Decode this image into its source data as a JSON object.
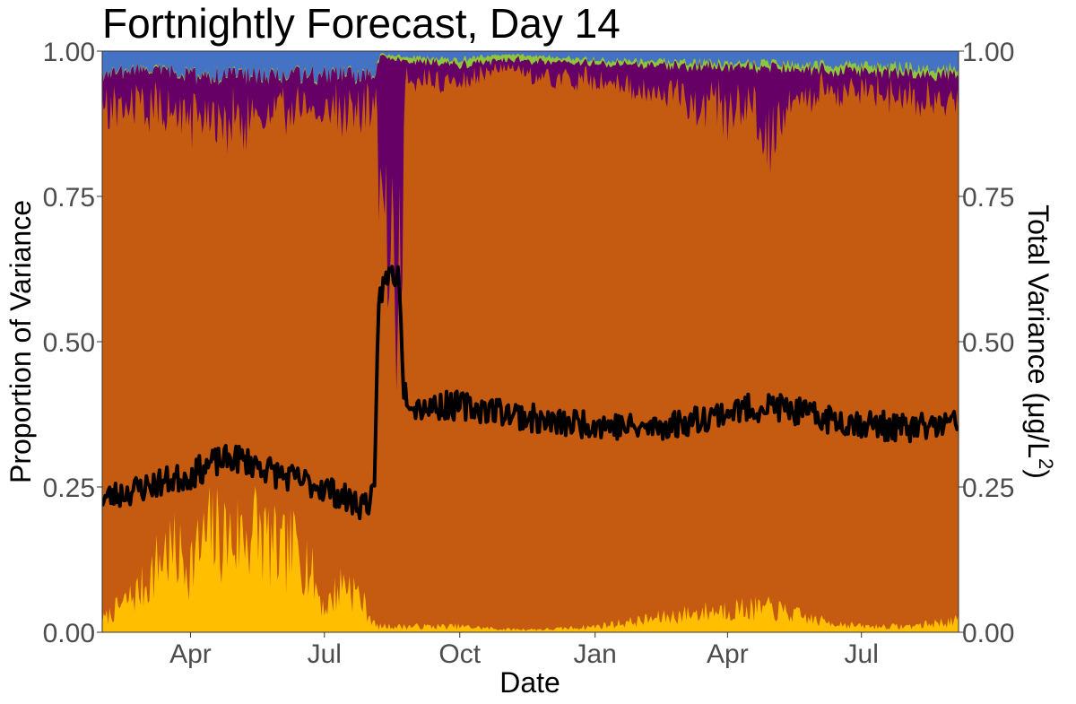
{
  "chart_data": {
    "type": "area",
    "title": "Fortnightly Forecast, Day 14",
    "xlabel": "Date",
    "ylabel": "Proportion of Variance",
    "y2label_prefix": "Total Variance (",
    "y2label_unit": "μg/L",
    "y2label_sup": "2",
    "y2label_suffix": ")",
    "ylim": [
      0,
      1
    ],
    "y2lim": [
      0,
      1
    ],
    "yticks": [
      "0.00",
      "0.25",
      "0.50",
      "0.75",
      "1.00"
    ],
    "y2ticks": [
      "0.00",
      "0.25",
      "0.50",
      "0.75",
      "1.00"
    ],
    "xticks": [
      "Apr",
      "Jul",
      "Oct",
      "Jan",
      "Apr",
      "Jul"
    ],
    "xtick_dates": [
      "2018-04-01",
      "2018-07-01",
      "2018-10-01",
      "2019-01-01",
      "2019-04-01",
      "2019-07-01"
    ],
    "xlim": [
      "2018-01-31",
      "2019-09-05"
    ],
    "grid": false,
    "colors": {
      "yellow": "#ffbe00",
      "orange": "#c55a11",
      "purple": "#660066",
      "green": "#8cc63f",
      "blue": "#4472c4",
      "total": "#000000"
    },
    "stack_order": [
      "yellow",
      "orange",
      "purple",
      "green",
      "blue"
    ],
    "series": [
      {
        "color": "yellow",
        "points": [
          [
            "2018-01-31",
            0.02
          ],
          [
            "2018-02-15",
            0.05
          ],
          [
            "2018-03-01",
            0.08
          ],
          [
            "2018-03-15",
            0.14
          ],
          [
            "2018-04-01",
            0.12
          ],
          [
            "2018-04-15",
            0.17
          ],
          [
            "2018-05-01",
            0.16
          ],
          [
            "2018-05-15",
            0.18
          ],
          [
            "2018-06-01",
            0.13
          ],
          [
            "2018-06-15",
            0.15
          ],
          [
            "2018-07-01",
            0.04
          ],
          [
            "2018-07-15",
            0.09
          ],
          [
            "2018-07-25",
            0.06
          ],
          [
            "2018-08-05",
            0.01
          ],
          [
            "2018-09-01",
            0.01
          ],
          [
            "2018-10-01",
            0.01
          ],
          [
            "2018-11-01",
            0.005
          ],
          [
            "2018-12-01",
            0.005
          ],
          [
            "2019-01-01",
            0.01
          ],
          [
            "2019-02-01",
            0.02
          ],
          [
            "2019-03-01",
            0.03
          ],
          [
            "2019-04-01",
            0.04
          ],
          [
            "2019-05-01",
            0.04
          ],
          [
            "2019-06-01",
            0.02
          ],
          [
            "2019-07-01",
            0.01
          ],
          [
            "2019-08-01",
            0.01
          ],
          [
            "2019-09-05",
            0.02
          ]
        ]
      },
      {
        "color": "purple",
        "points": [
          [
            "2018-01-31",
            0.07
          ],
          [
            "2018-03-01",
            0.06
          ],
          [
            "2018-04-01",
            0.08
          ],
          [
            "2018-05-01",
            0.08
          ],
          [
            "2018-06-01",
            0.06
          ],
          [
            "2018-07-01",
            0.06
          ],
          [
            "2018-08-05",
            0.06
          ],
          [
            "2018-08-08",
            0.35
          ],
          [
            "2018-08-22",
            0.35
          ],
          [
            "2018-08-26",
            0.03
          ],
          [
            "2018-10-01",
            0.03
          ],
          [
            "2018-11-01",
            0.01
          ],
          [
            "2018-12-01",
            0.03
          ],
          [
            "2019-01-01",
            0.03
          ],
          [
            "2019-02-01",
            0.04
          ],
          [
            "2019-03-01",
            0.05
          ],
          [
            "2019-04-01",
            0.08
          ],
          [
            "2019-05-01",
            0.11
          ],
          [
            "2019-05-15",
            0.05
          ],
          [
            "2019-06-01",
            0.04
          ],
          [
            "2019-07-01",
            0.03
          ],
          [
            "2019-08-01",
            0.04
          ],
          [
            "2019-09-05",
            0.04
          ]
        ]
      },
      {
        "color": "green",
        "points": [
          [
            "2018-01-31",
            0.002
          ],
          [
            "2018-08-05",
            0.002
          ],
          [
            "2018-08-08",
            0.005
          ],
          [
            "2018-10-15",
            0.01
          ],
          [
            "2018-11-01",
            0.01
          ],
          [
            "2019-01-01",
            0.006
          ],
          [
            "2019-04-01",
            0.008
          ],
          [
            "2019-07-01",
            0.01
          ],
          [
            "2019-09-05",
            0.01
          ]
        ]
      },
      {
        "color": "blue",
        "points": [
          [
            "2018-01-31",
            0.04
          ],
          [
            "2018-03-01",
            0.03
          ],
          [
            "2018-04-01",
            0.04
          ],
          [
            "2018-05-01",
            0.04
          ],
          [
            "2018-06-01",
            0.04
          ],
          [
            "2018-07-01",
            0.04
          ],
          [
            "2018-08-05",
            0.04
          ],
          [
            "2018-08-08",
            0.005
          ],
          [
            "2018-09-01",
            0.01
          ],
          [
            "2018-10-01",
            0.015
          ],
          [
            "2018-11-01",
            0.005
          ],
          [
            "2019-01-01",
            0.015
          ],
          [
            "2019-04-01",
            0.02
          ],
          [
            "2019-07-01",
            0.025
          ],
          [
            "2019-09-05",
            0.03
          ]
        ]
      },
      {
        "name": "Total Variance",
        "color": "total",
        "axis": "right",
        "points": [
          [
            "2018-01-31",
            0.23
          ],
          [
            "2018-02-15",
            0.24
          ],
          [
            "2018-03-01",
            0.25
          ],
          [
            "2018-03-15",
            0.26
          ],
          [
            "2018-04-01",
            0.27
          ],
          [
            "2018-04-15",
            0.29
          ],
          [
            "2018-05-01",
            0.3
          ],
          [
            "2018-05-15",
            0.29
          ],
          [
            "2018-06-01",
            0.27
          ],
          [
            "2018-06-15",
            0.26
          ],
          [
            "2018-07-01",
            0.25
          ],
          [
            "2018-07-15",
            0.23
          ],
          [
            "2018-07-25",
            0.22
          ],
          [
            "2018-08-04",
            0.23
          ],
          [
            "2018-08-07",
            0.58
          ],
          [
            "2018-08-15",
            0.62
          ],
          [
            "2018-08-21",
            0.61
          ],
          [
            "2018-08-24",
            0.42
          ],
          [
            "2018-09-01",
            0.39
          ],
          [
            "2018-10-01",
            0.39
          ],
          [
            "2018-11-01",
            0.38
          ],
          [
            "2018-12-01",
            0.36
          ],
          [
            "2019-01-01",
            0.36
          ],
          [
            "2019-02-01",
            0.35
          ],
          [
            "2019-03-01",
            0.36
          ],
          [
            "2019-04-01",
            0.38
          ],
          [
            "2019-05-01",
            0.39
          ],
          [
            "2019-06-01",
            0.37
          ],
          [
            "2019-07-01",
            0.36
          ],
          [
            "2019-08-01",
            0.35
          ],
          [
            "2019-09-05",
            0.36
          ]
        ]
      }
    ]
  }
}
